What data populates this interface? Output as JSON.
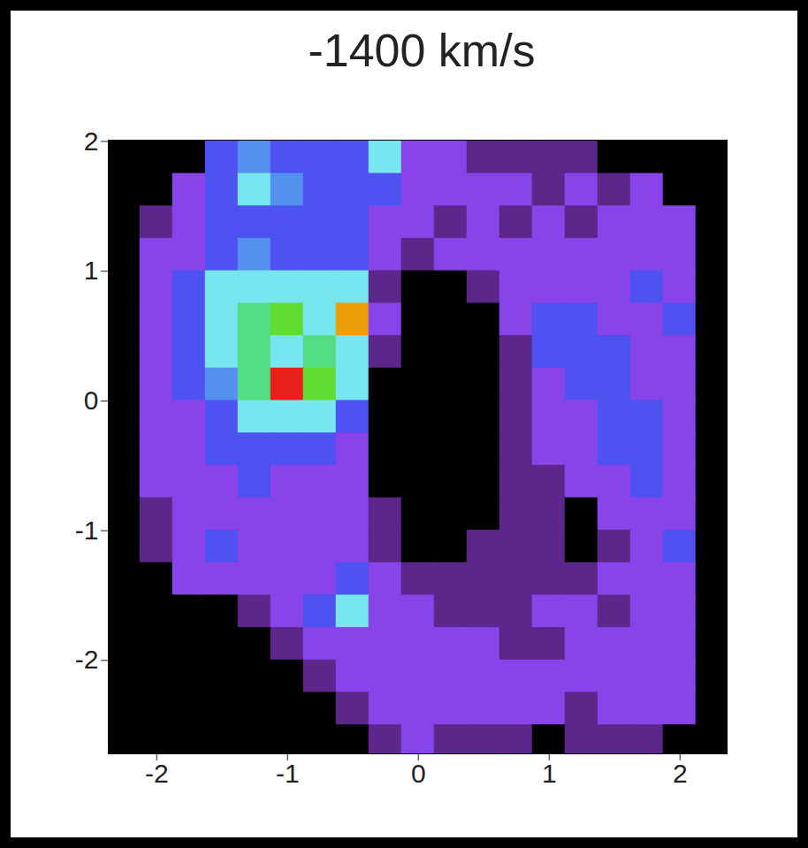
{
  "chart_data": {
    "type": "heatmap",
    "title": "-1400 km/s",
    "x": [
      -2.25,
      -2,
      -1.75,
      -1.5,
      -1.25,
      -1,
      -0.75,
      -0.5,
      -0.25,
      0,
      0.25,
      0.5,
      0.75,
      1,
      1.25,
      1.5,
      1.75,
      2,
      2.25
    ],
    "y": [
      1.875,
      1.625,
      1.375,
      1.125,
      0.875,
      0.625,
      0.375,
      0.125,
      -0.125,
      -0.375,
      -0.625,
      -0.875,
      -1.125,
      -1.375,
      -1.625,
      -1.875,
      -2.125,
      -2.375,
      -2.625
    ],
    "values": [
      [
        0,
        0,
        0,
        3,
        4,
        3,
        3,
        3,
        5,
        2,
        2,
        1,
        1,
        1,
        1,
        0,
        0,
        0,
        0
      ],
      [
        0,
        0,
        2,
        3,
        5,
        4,
        3,
        3,
        3,
        2,
        2,
        2,
        2,
        1,
        2,
        1,
        2,
        0,
        0
      ],
      [
        0,
        1,
        2,
        3,
        3,
        3,
        3,
        3,
        2,
        2,
        1,
        2,
        1,
        2,
        1,
        2,
        2,
        2,
        0
      ],
      [
        0,
        2,
        2,
        3,
        4,
        3,
        3,
        3,
        2,
        1,
        2,
        2,
        2,
        2,
        2,
        2,
        2,
        2,
        0
      ],
      [
        0,
        2,
        3,
        5,
        5,
        5,
        5,
        5,
        1,
        0,
        0,
        1,
        2,
        2,
        2,
        2,
        3,
        2,
        0
      ],
      [
        0,
        2,
        3,
        5,
        6,
        7,
        5,
        9,
        2,
        0,
        0,
        0,
        2,
        3,
        3,
        2,
        2,
        3,
        0
      ],
      [
        0,
        2,
        3,
        5,
        6,
        5,
        6,
        5,
        1,
        0,
        0,
        0,
        1,
        3,
        3,
        3,
        2,
        2,
        0
      ],
      [
        0,
        2,
        3,
        4,
        6,
        10,
        7,
        5,
        0,
        0,
        0,
        0,
        1,
        2,
        3,
        3,
        2,
        2,
        0
      ],
      [
        0,
        2,
        2,
        3,
        5,
        5,
        5,
        3,
        0,
        0,
        0,
        0,
        1,
        2,
        2,
        3,
        3,
        2,
        0
      ],
      [
        0,
        2,
        2,
        3,
        3,
        3,
        3,
        2,
        0,
        0,
        0,
        0,
        1,
        2,
        2,
        3,
        3,
        2,
        0
      ],
      [
        0,
        2,
        2,
        2,
        3,
        2,
        2,
        2,
        0,
        0,
        0,
        0,
        1,
        1,
        2,
        2,
        3,
        2,
        0
      ],
      [
        0,
        1,
        2,
        2,
        2,
        2,
        2,
        2,
        1,
        0,
        0,
        0,
        1,
        1,
        0,
        2,
        2,
        2,
        0
      ],
      [
        0,
        1,
        2,
        3,
        2,
        2,
        2,
        2,
        1,
        0,
        0,
        1,
        1,
        1,
        0,
        1,
        2,
        3,
        0
      ],
      [
        0,
        0,
        2,
        2,
        2,
        2,
        2,
        3,
        2,
        1,
        1,
        1,
        1,
        1,
        1,
        2,
        2,
        2,
        0
      ],
      [
        0,
        0,
        0,
        0,
        1,
        2,
        3,
        5,
        2,
        2,
        1,
        1,
        1,
        2,
        2,
        1,
        2,
        2,
        0
      ],
      [
        0,
        0,
        0,
        0,
        0,
        1,
        2,
        2,
        2,
        2,
        2,
        2,
        1,
        1,
        2,
        2,
        2,
        2,
        0
      ],
      [
        0,
        0,
        0,
        0,
        0,
        0,
        1,
        2,
        2,
        2,
        2,
        2,
        2,
        2,
        2,
        2,
        2,
        2,
        0
      ],
      [
        0,
        0,
        0,
        0,
        0,
        0,
        0,
        1,
        2,
        2,
        2,
        2,
        2,
        2,
        1,
        2,
        2,
        2,
        0
      ],
      [
        0,
        0,
        0,
        0,
        0,
        0,
        0,
        0,
        1,
        2,
        1,
        1,
        1,
        0,
        1,
        1,
        1,
        0,
        0
      ]
    ],
    "value_range": [
      0,
      10
    ],
    "xlim": [
      -2.37,
      2.36
    ],
    "ylim": [
      -2.72,
      2.01
    ],
    "xticks": [
      -2,
      -1,
      0,
      1,
      2
    ],
    "yticks": [
      -2,
      -1,
      0,
      1,
      2
    ]
  }
}
